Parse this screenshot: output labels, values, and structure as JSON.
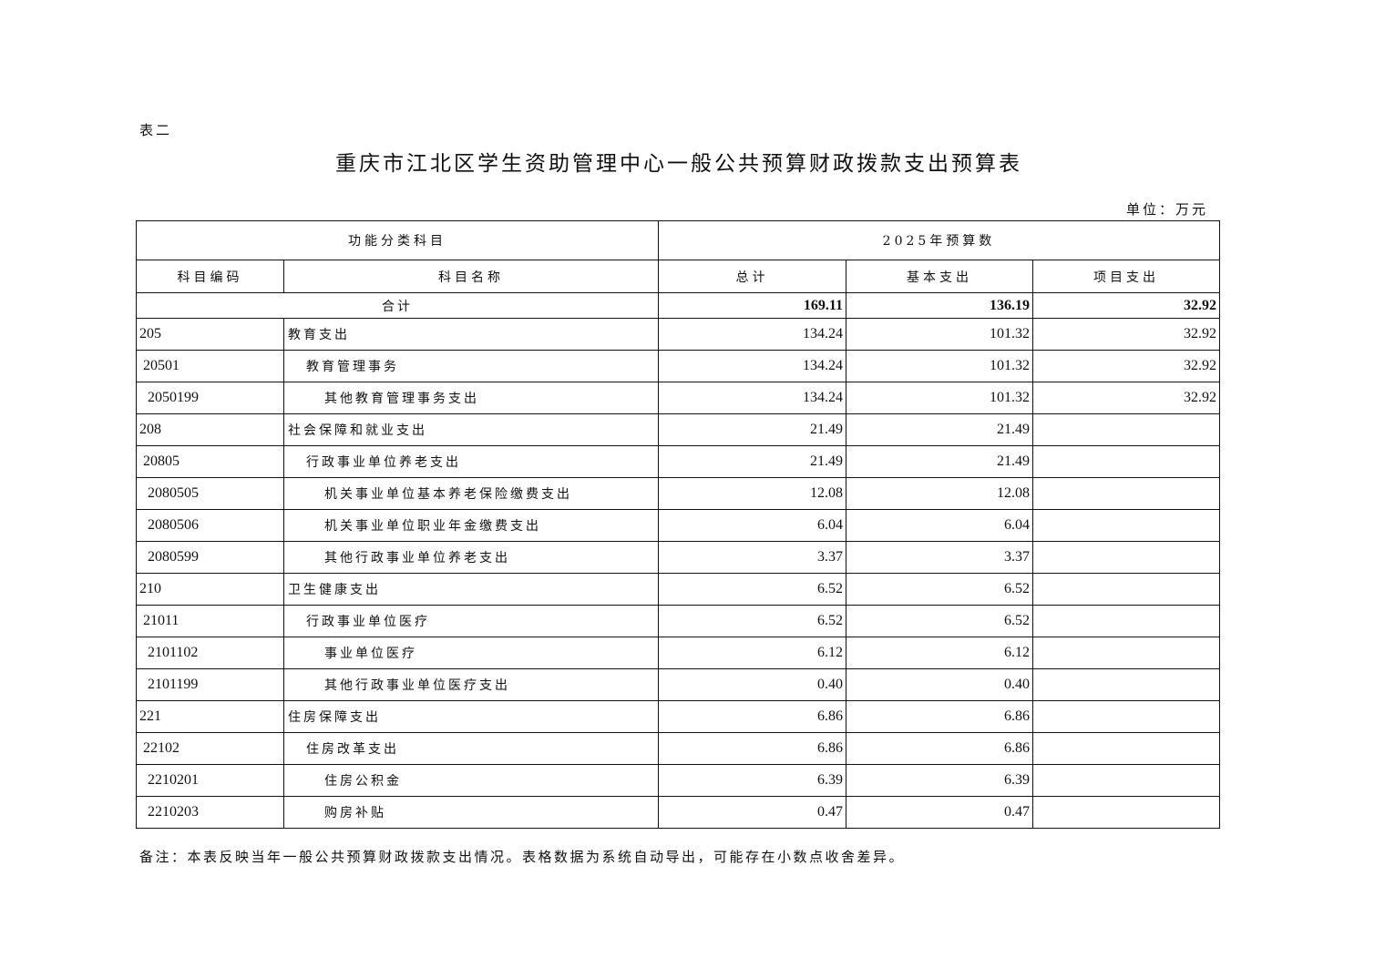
{
  "table_label": "表二",
  "title": "重庆市江北区学生资助管理中心一般公共预算财政拨款支出预算表",
  "unit": "单位：万元",
  "headers": {
    "group_left": "功能分类科目",
    "group_right": "2025年预算数",
    "code": "科目编码",
    "name": "科目名称",
    "total": "总计",
    "basic": "基本支出",
    "project": "项目支出"
  },
  "total_row": {
    "label": "合计",
    "total": "169.11",
    "basic": "136.19",
    "project": "32.92"
  },
  "rows": [
    {
      "level": 1,
      "code": "205",
      "name": "教育支出",
      "total": "134.24",
      "basic": "101.32",
      "project": "32.92"
    },
    {
      "level": 2,
      "code": "20501",
      "name": "教育管理事务",
      "total": "134.24",
      "basic": "101.32",
      "project": "32.92"
    },
    {
      "level": 3,
      "code": "2050199",
      "name": "其他教育管理事务支出",
      "total": "134.24",
      "basic": "101.32",
      "project": "32.92"
    },
    {
      "level": 1,
      "code": "208",
      "name": "社会保障和就业支出",
      "total": "21.49",
      "basic": "21.49",
      "project": ""
    },
    {
      "level": 2,
      "code": "20805",
      "name": "行政事业单位养老支出",
      "total": "21.49",
      "basic": "21.49",
      "project": ""
    },
    {
      "level": 3,
      "code": "2080505",
      "name": "机关事业单位基本养老保险缴费支出",
      "total": "12.08",
      "basic": "12.08",
      "project": ""
    },
    {
      "level": 3,
      "code": "2080506",
      "name": "机关事业单位职业年金缴费支出",
      "total": "6.04",
      "basic": "6.04",
      "project": ""
    },
    {
      "level": 3,
      "code": "2080599",
      "name": "其他行政事业单位养老支出",
      "total": "3.37",
      "basic": "3.37",
      "project": ""
    },
    {
      "level": 1,
      "code": "210",
      "name": "卫生健康支出",
      "total": "6.52",
      "basic": "6.52",
      "project": ""
    },
    {
      "level": 2,
      "code": "21011",
      "name": "行政事业单位医疗",
      "total": "6.52",
      "basic": "6.52",
      "project": ""
    },
    {
      "level": 3,
      "code": "2101102",
      "name": "事业单位医疗",
      "total": "6.12",
      "basic": "6.12",
      "project": ""
    },
    {
      "level": 3,
      "code": "2101199",
      "name": "其他行政事业单位医疗支出",
      "total": "0.40",
      "basic": "0.40",
      "project": ""
    },
    {
      "level": 1,
      "code": "221",
      "name": "住房保障支出",
      "total": "6.86",
      "basic": "6.86",
      "project": ""
    },
    {
      "level": 2,
      "code": "22102",
      "name": "住房改革支出",
      "total": "6.86",
      "basic": "6.86",
      "project": ""
    },
    {
      "level": 3,
      "code": "2210201",
      "name": "住房公积金",
      "total": "6.39",
      "basic": "6.39",
      "project": ""
    },
    {
      "level": 3,
      "code": "2210203",
      "name": "购房补贴",
      "total": "0.47",
      "basic": "0.47",
      "project": ""
    }
  ],
  "note": "备注：本表反映当年一般公共预算财政拨款支出情况。表格数据为系统自动导出，可能存在小数点收舍差异。"
}
